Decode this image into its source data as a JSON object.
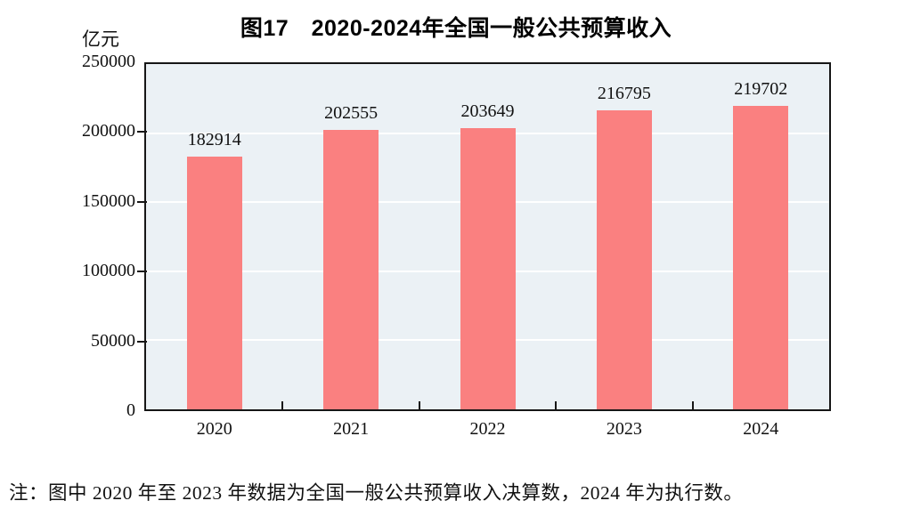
{
  "figure": {
    "title": "图17　2020-2024年全国一般公共预算收入",
    "unit_label": "亿元",
    "note": "注：图中 2020 年至 2023 年数据为全国一般公共预算收入决算数，2024 年为执行数。"
  },
  "chart_data": {
    "type": "bar",
    "title": "图17　2020-2024年全国一般公共预算收入",
    "categories": [
      "2020",
      "2021",
      "2022",
      "2023",
      "2024"
    ],
    "values": [
      182914,
      202555,
      203649,
      216795,
      219702
    ],
    "data_labels": [
      "182914",
      "202555",
      "203649",
      "216795",
      "219702"
    ],
    "xlabel": "",
    "ylabel": "亿元",
    "ylim": [
      0,
      250000
    ],
    "y_ticks": [
      0,
      50000,
      100000,
      150000,
      200000,
      250000
    ],
    "gridlines": [
      50000,
      100000,
      150000,
      200000
    ],
    "legend": "none",
    "grid": "horizontal"
  },
  "colors": {
    "bar": "#FA8080",
    "plot_background": "#EBF1F5",
    "gridline": "#FFFFFF",
    "axis_border": "#161616",
    "text": "#111111",
    "page_background": "#FFFFFF"
  }
}
